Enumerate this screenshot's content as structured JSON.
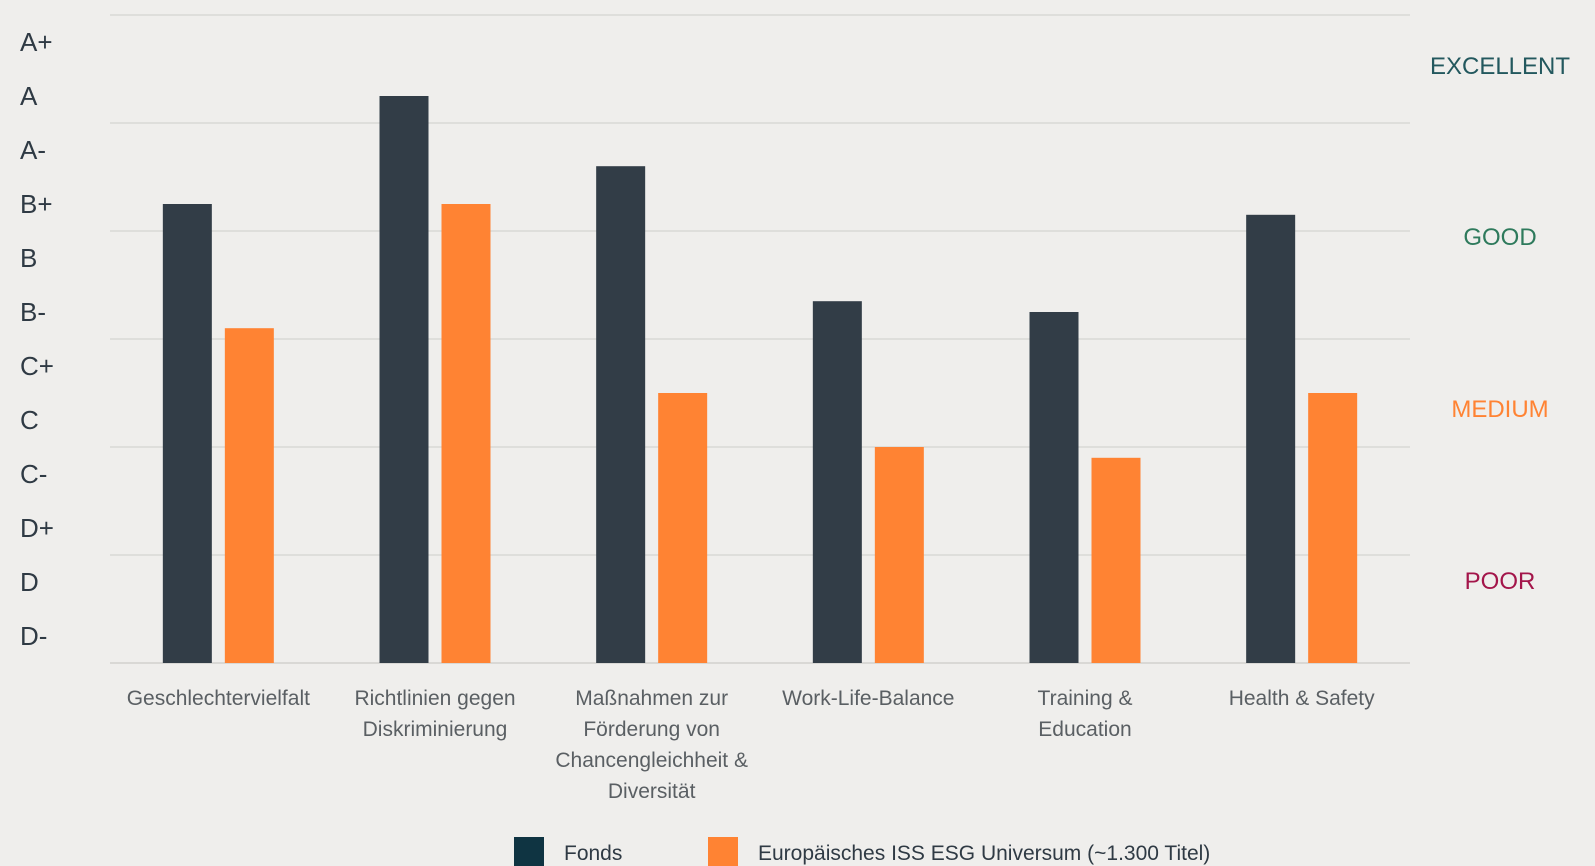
{
  "chart_data": {
    "type": "bar",
    "y_scale": [
      "D-",
      "D",
      "D+",
      "C-",
      "C",
      "C+",
      "B-",
      "B",
      "B+",
      "A-",
      "A",
      "A+"
    ],
    "ylim": [
      "D-",
      "A+"
    ],
    "grid": true,
    "categories": [
      [
        "Geschlechtervielfalt"
      ],
      [
        "Richtlinien gegen",
        "Diskriminierung"
      ],
      [
        "Maßnahmen zur",
        "Förderung von",
        "Chancengleichheit &",
        "Diversität"
      ],
      [
        "Work-Life-Balance"
      ],
      [
        "Training &",
        "Education"
      ],
      [
        "Health & Safety"
      ]
    ],
    "series": [
      {
        "name": "Fonds",
        "color": "#323d47",
        "values": [
          8.5,
          10.5,
          9.2,
          6.7,
          6.5,
          8.3
        ]
      },
      {
        "name": "Europäisches ISS ESG Universum (~1.300 Titel)",
        "color": "#ff8333",
        "values": [
          6.2,
          8.5,
          5.0,
          4.0,
          3.8,
          5.0
        ]
      }
    ],
    "rating_bands": [
      {
        "label": "EXCELLENT",
        "color": "#23585e"
      },
      {
        "label": "GOOD",
        "color": "#2e7a5c"
      },
      {
        "label": "MEDIUM",
        "color": "#ff8333"
      },
      {
        "label": "POOR",
        "color": "#a3154a"
      }
    ],
    "legend_position": "bottom"
  }
}
